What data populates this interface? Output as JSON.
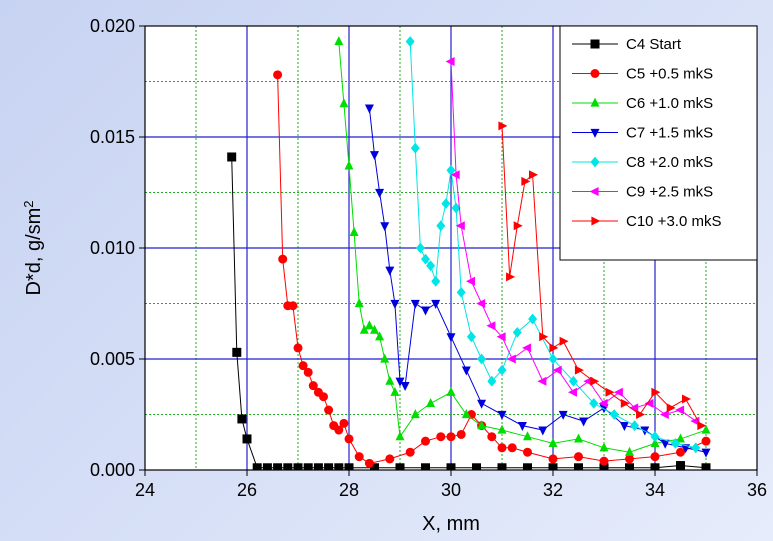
{
  "chart_data": {
    "type": "scatter",
    "xlabel": "X, mm",
    "ylabel": "D*d, g/sm",
    "ylabel_sup": "2",
    "xlim": [
      24,
      36
    ],
    "ylim": [
      0,
      0.02
    ],
    "x_ticks": [
      24,
      26,
      28,
      30,
      32,
      34,
      36
    ],
    "x_tick_labels": [
      "24",
      "26",
      "28",
      "30",
      "32",
      "34",
      "36"
    ],
    "y_ticks": [
      0,
      0.005,
      0.01,
      0.015,
      0.02
    ],
    "y_tick_labels": [
      "0.000",
      "0.005",
      "0.010",
      "0.015",
      "0.020"
    ],
    "grid": true,
    "legend_position": "top-right",
    "series": [
      {
        "name": "C4  Start",
        "color": "#000000",
        "marker": "square",
        "x": [
          25.7,
          25.8,
          25.9,
          26.0,
          26.2,
          26.4,
          26.6,
          26.8,
          27.0,
          27.2,
          27.4,
          27.6,
          27.8,
          28.0,
          28.5,
          29.0,
          29.5,
          30.0,
          30.5,
          31.0,
          31.5,
          32.0,
          32.5,
          33.0,
          33.5,
          34.0,
          34.5,
          35.0
        ],
        "y": [
          0.0141,
          0.0053,
          0.0023,
          0.0014,
          0.0001,
          0.0001,
          0.0001,
          0.0001,
          0.0001,
          0.0001,
          0.0001,
          0.0001,
          0.0001,
          0.0001,
          0.0001,
          0.0001,
          0.0001,
          0.0001,
          0.0001,
          0.0001,
          0.0001,
          0.0001,
          0.0001,
          0.0001,
          0.0001,
          0.0001,
          0.0002,
          0.0001
        ]
      },
      {
        "name": "C5 +0.5 mkS",
        "color": "#ff0000",
        "marker": "circle",
        "x": [
          26.6,
          26.7,
          26.8,
          26.9,
          27.0,
          27.1,
          27.2,
          27.3,
          27.4,
          27.5,
          27.6,
          27.7,
          27.8,
          27.9,
          28.0,
          28.2,
          28.4,
          28.8,
          29.2,
          29.5,
          29.8,
          30.0,
          30.2,
          30.4,
          30.6,
          30.8,
          31.0,
          31.2,
          31.5,
          32.0,
          32.5,
          33.0,
          33.5,
          34.0,
          34.5,
          35.0
        ],
        "y": [
          0.0178,
          0.0095,
          0.0074,
          0.0074,
          0.0055,
          0.0047,
          0.0044,
          0.0038,
          0.0035,
          0.0033,
          0.0027,
          0.002,
          0.0018,
          0.0021,
          0.0014,
          0.0006,
          0.0003,
          0.0005,
          0.0008,
          0.0013,
          0.0015,
          0.0015,
          0.0016,
          0.0025,
          0.002,
          0.0015,
          0.001,
          0.001,
          0.0008,
          0.0005,
          0.0006,
          0.0004,
          0.0005,
          0.0006,
          0.0008,
          0.0013
        ]
      },
      {
        "name": "C6 +1.0 mkS",
        "color": "#00dd00",
        "marker": "triangle-up",
        "x": [
          27.8,
          27.9,
          28.0,
          28.1,
          28.2,
          28.3,
          28.4,
          28.5,
          28.6,
          28.7,
          28.8,
          28.9,
          29.0,
          29.3,
          29.6,
          30.0,
          30.3,
          30.6,
          31.0,
          31.5,
          32.0,
          32.5,
          33.0,
          33.5,
          34.0,
          34.5,
          35.0
        ],
        "y": [
          0.0193,
          0.0165,
          0.0137,
          0.0107,
          0.0075,
          0.0063,
          0.0065,
          0.0063,
          0.006,
          0.005,
          0.004,
          0.0035,
          0.0015,
          0.0025,
          0.003,
          0.0035,
          0.0025,
          0.002,
          0.0018,
          0.0015,
          0.0012,
          0.0014,
          0.001,
          0.0008,
          0.0012,
          0.0014,
          0.0018
        ]
      },
      {
        "name": "C7 +1.5 mkS",
        "color": "#0000dd",
        "marker": "triangle-down",
        "x": [
          28.4,
          28.5,
          28.6,
          28.7,
          28.8,
          28.9,
          29.0,
          29.1,
          29.3,
          29.5,
          29.7,
          30.0,
          30.3,
          30.6,
          31.0,
          31.4,
          31.8,
          32.2,
          32.6,
          33.0,
          33.4,
          33.8,
          34.2,
          34.6,
          35.0
        ],
        "y": [
          0.0163,
          0.0142,
          0.0125,
          0.011,
          0.009,
          0.0075,
          0.004,
          0.0038,
          0.0075,
          0.0072,
          0.0075,
          0.006,
          0.0045,
          0.003,
          0.0025,
          0.002,
          0.0018,
          0.0025,
          0.0022,
          0.0028,
          0.002,
          0.0018,
          0.0012,
          0.001,
          0.0008
        ]
      },
      {
        "name": "C8 +2.0 mkS",
        "color": "#00e5e5",
        "marker": "diamond",
        "x": [
          29.2,
          29.3,
          29.4,
          29.5,
          29.6,
          29.7,
          29.8,
          29.9,
          30.0,
          30.1,
          30.2,
          30.4,
          30.6,
          30.8,
          31.0,
          31.3,
          31.6,
          32.0,
          32.4,
          32.8,
          33.2,
          33.6,
          34.0,
          34.4,
          34.8
        ],
        "y": [
          0.0193,
          0.0145,
          0.01,
          0.0095,
          0.0092,
          0.0085,
          0.011,
          0.012,
          0.0135,
          0.0118,
          0.008,
          0.006,
          0.005,
          0.004,
          0.0045,
          0.0062,
          0.0068,
          0.005,
          0.004,
          0.003,
          0.0025,
          0.002,
          0.0015,
          0.0012,
          0.001
        ]
      },
      {
        "name": "C9 +2.5 mkS",
        "color": "#ff00ff",
        "marker": "triangle-left",
        "x": [
          30.0,
          30.1,
          30.2,
          30.4,
          30.6,
          30.8,
          31.0,
          31.2,
          31.5,
          31.8,
          32.1,
          32.4,
          32.7,
          33.0,
          33.3,
          33.6,
          33.9,
          34.2,
          34.5,
          34.8
        ],
        "y": [
          0.0184,
          0.0133,
          0.011,
          0.0085,
          0.0075,
          0.0065,
          0.006,
          0.005,
          0.0055,
          0.004,
          0.0045,
          0.0035,
          0.004,
          0.003,
          0.0035,
          0.0028,
          0.003,
          0.0025,
          0.0027,
          0.0022
        ]
      },
      {
        "name": "C10 +3.0 mkS",
        "color": "#ff0000",
        "marker": "triangle-right",
        "x": [
          31.0,
          31.15,
          31.3,
          31.45,
          31.6,
          31.8,
          32.0,
          32.2,
          32.5,
          32.8,
          33.1,
          33.4,
          33.7,
          34.0,
          34.3,
          34.6,
          34.9
        ],
        "y": [
          0.0155,
          0.0087,
          0.011,
          0.013,
          0.0133,
          0.006,
          0.0055,
          0.0058,
          0.0045,
          0.004,
          0.0035,
          0.003,
          0.0025,
          0.0035,
          0.0028,
          0.0032,
          0.002
        ]
      }
    ]
  }
}
